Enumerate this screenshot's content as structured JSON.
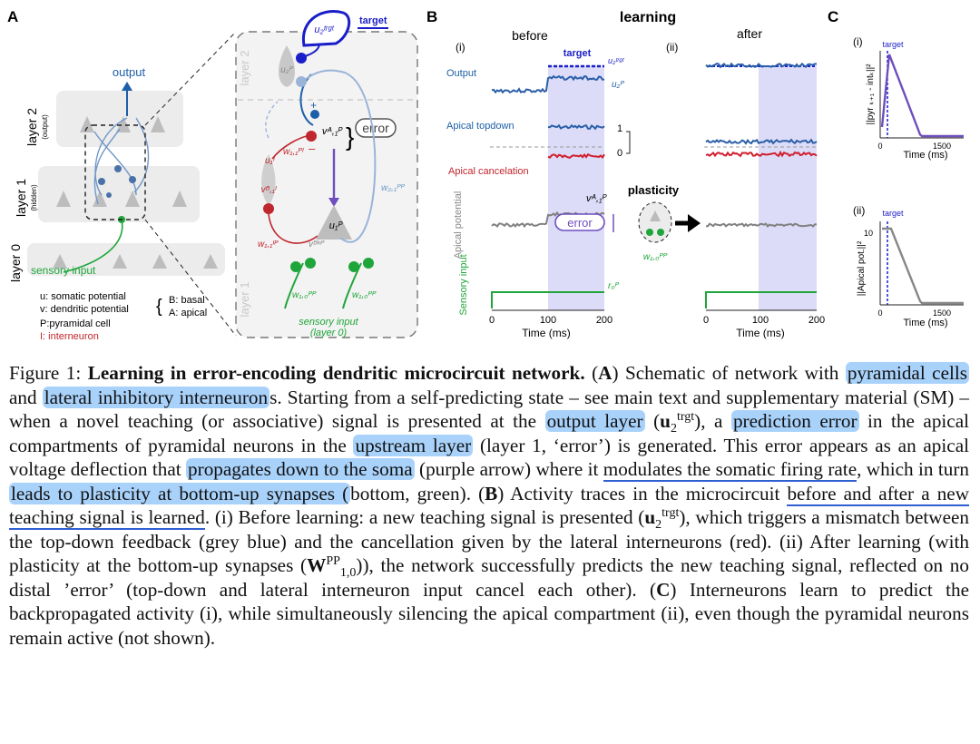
{
  "panels": {
    "a": "A",
    "b": "B",
    "c": "C"
  },
  "panel_a": {
    "target_label": "target",
    "output_label": "output",
    "layer2": "layer 2",
    "layer2_sub": "(output)",
    "layer1": "layer 1",
    "layer1_sub": "(hidden)",
    "layer0": "layer 0",
    "sensory_input": "sensory input",
    "legend_u": "u: somatic potential",
    "legend_v": "v: dendritic potential",
    "legend_b": "B: basal",
    "legend_a": "A: apical",
    "legend_p": "P:pyramidal cell",
    "legend_i": "I: interneuron",
    "zoom_layer2": "layer 2",
    "zoom_layer1": "layer 1",
    "error_label": "error",
    "zoom_sensory": "sensory input",
    "zoom_sensory2": "(layer 0)",
    "u2_trgt": "u₂ᵗʳᵍᵗ",
    "u2p": "u₂ᴾ",
    "va1": "vᴬ,₁ᴾ",
    "ui1": "u₁ᴵ",
    "wpi": "w₁,₁ᴾᴵ",
    "vbi": "vᴮ,₁ᴵ",
    "w11ip": "w₁,₁ᴵᴾ",
    "vbk": "vᴮᵏᴾ",
    "u1p": "u₁ᴾ",
    "w21pp": "w₂,₁ᴾᴾ",
    "w10pp_a": "w₁,₀ᴾᴾ",
    "w10pp_b": "w₁,₀ᴾᴾ"
  },
  "panel_b": {
    "title": "learning",
    "before": "before",
    "after": "after",
    "i": "(i)",
    "ii": "(ii)",
    "target": "target",
    "output": "Output",
    "u2trgt": "u₂ᵗʳᵍᵗ",
    "u2p": "u₂ᴾ",
    "apical_topdown": "Apical topdown",
    "apical_cancel": "Apical cancelation",
    "scale_1": "1",
    "scale_0": "0",
    "apical_potential": "Apical potential",
    "va1": "vᴬ,₁ᴾ",
    "error": "error",
    "plasticity": "plasticity",
    "w10": "w₁,₀ᴾᴾ",
    "sensory": "Sensory input",
    "r0": "r₀ᴾ",
    "xticks": [
      "0",
      "100",
      "200"
    ],
    "xlabel": "Time (ms)"
  },
  "panel_c": {
    "i": "(i)",
    "ii": "(ii)",
    "target": "target",
    "ylabel_i": "||pyr ₖ₊₁ - intₖ||²",
    "ylabel_ii": "||Apical pot.||²",
    "xticks": [
      "0",
      "1500"
    ],
    "xlabel": "Time (ms)",
    "ytick_ii": "10"
  },
  "caption": {
    "fig": "Figure 1:",
    "title": "Learning in error-encoding dendritic microcircuit network.",
    "t1": "(",
    "A": "A",
    "t2": ") Schematic of network with ",
    "h1": "pyramidal cells",
    "t3": " and ",
    "h2": "lateral inhibitory interneuron",
    "t4": "s. Starting from a self-predicting state – see main text and supplementary material (SM) – when a novel teaching (or associative) signal is presented at the ",
    "h3": "output layer",
    "t5": " (",
    "u": "u",
    "u_sub": "2",
    "u_sup": "trgt",
    "t6": "), a ",
    "h4": "prediction error",
    "t7": " in the apical compartments of pyramidal neurons in the ",
    "h5": "upstream layer",
    "t8": " (layer 1, ‘error’) is generated. This error appears as an apical voltage deflection that ",
    "h6": "propagates down to the soma",
    "t9": " (purple arrow) where it ",
    "u1": "modulates the somatic firing rate",
    "t10": ", which in turn ",
    "h7": "leads to plasticity at bottom-up synapses (",
    "t11": "bottom, green). (",
    "B": "B",
    "t12": ") Activity traces in the microcircuit ",
    "u2": "before and after a new teaching signal is learned",
    "t13": ". (i) Before learning: a new teaching signal is presented (",
    "t14": "), which triggers a mismatch between the top-down feedback (grey blue) and the cancellation given by the lateral interneurons (red). (ii) After learning (with plasticity at the bottom-up synapses (",
    "W": "W",
    "W_sub": "1,0",
    "W_sup": "PP",
    "t15": ")), the network successfully predicts the new teaching signal, reflected on no distal ’error’ (top-down and lateral interneuron input cancel each other). (",
    "C": "C",
    "t16": ") Interneurons learn to predict the backpropagated activity (i), while simultaneously silencing the apical compartment (ii), even though the pyramidal neurons remain active (not shown)."
  }
}
